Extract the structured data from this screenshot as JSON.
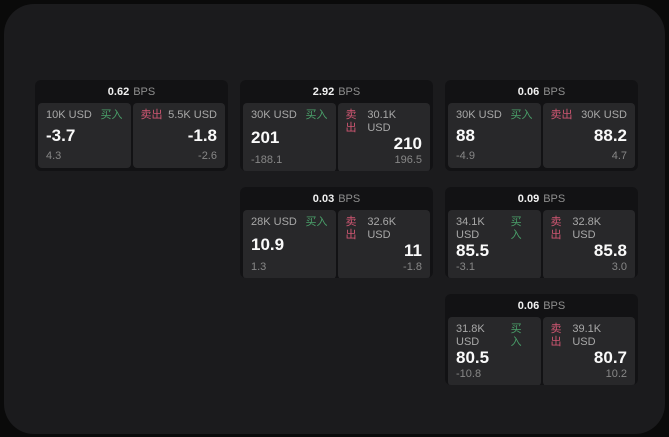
{
  "colors": {
    "background": "#0a0a0a",
    "panel": "#1b1b1d",
    "card": "#121214",
    "tile": "#28282a",
    "buy_green": "#4aa06a",
    "sell_red": "#cf5672"
  },
  "labels": {
    "unit": "BPS",
    "buy": "买入",
    "sell": "卖出"
  },
  "cards": [
    {
      "row": 1,
      "col": 1,
      "bps": "0.62",
      "buy": {
        "amount": "10K USD",
        "value": "-3.7",
        "delta": "4.3"
      },
      "sell": {
        "amount": "5.5K USD",
        "value": "-1.8",
        "delta": "-2.6"
      }
    },
    {
      "row": 1,
      "col": 2,
      "bps": "2.92",
      "buy": {
        "amount": "30K USD",
        "value": "201",
        "delta": "-188.1"
      },
      "sell": {
        "amount": "30.1K USD",
        "value": "210",
        "delta": "196.5"
      }
    },
    {
      "row": 1,
      "col": 3,
      "bps": "0.06",
      "buy": {
        "amount": "30K USD",
        "value": "88",
        "delta": "-4.9"
      },
      "sell": {
        "amount": "30K USD",
        "value": "88.2",
        "delta": "4.7"
      }
    },
    {
      "row": 2,
      "col": 2,
      "bps": "0.03",
      "buy": {
        "amount": "28K USD",
        "value": "10.9",
        "delta": "1.3"
      },
      "sell": {
        "amount": "32.6K USD",
        "value": "11",
        "delta": "-1.8"
      }
    },
    {
      "row": 2,
      "col": 3,
      "bps": "0.09",
      "buy": {
        "amount": "34.1K USD",
        "value": "85.5",
        "delta": "-3.1"
      },
      "sell": {
        "amount": "32.8K USD",
        "value": "85.8",
        "delta": "3.0"
      }
    },
    {
      "row": 3,
      "col": 3,
      "bps": "0.06",
      "buy": {
        "amount": "31.8K USD",
        "value": "80.5",
        "delta": "-10.8"
      },
      "sell": {
        "amount": "39.1K USD",
        "value": "80.7",
        "delta": "10.2"
      }
    }
  ]
}
